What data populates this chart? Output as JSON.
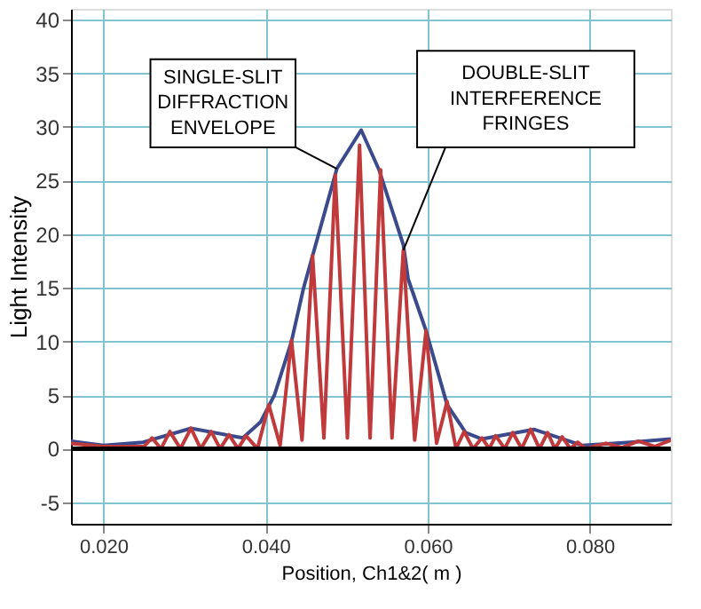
{
  "chart_data": {
    "type": "line",
    "xlabel": "Position, Ch1&2( m )",
    "ylabel": "Light Intensity",
    "xlim": [
      0.016,
      0.09
    ],
    "ylim": [
      -7,
      41
    ],
    "xticks": [
      {
        "value": 0.02,
        "label": "0.020"
      },
      {
        "value": 0.04,
        "label": "0.040"
      },
      {
        "value": 0.06,
        "label": "0.060"
      },
      {
        "value": 0.08,
        "label": "0.080"
      }
    ],
    "yticks": [
      -5,
      0,
      5,
      10,
      15,
      20,
      25,
      30,
      35,
      40
    ],
    "grid": true,
    "marker": "none",
    "line_style": "solid",
    "ref_lines": [
      {
        "axis": "y",
        "value": 0,
        "color": "#000000"
      }
    ],
    "series": [
      {
        "color": "#3b4a8c",
        "x": [
          0.016,
          0.02,
          0.0249,
          0.0308,
          0.0372,
          0.0394,
          0.0411,
          0.0432,
          0.0447,
          0.0488,
          0.0518,
          0.054,
          0.057,
          0.0576,
          0.0598,
          0.0624,
          0.0647,
          0.0667,
          0.0731,
          0.0791,
          0.085,
          0.09
        ],
        "values": [
          0.7,
          0.3,
          0.6,
          1.9,
          1.0,
          2.5,
          5,
          10,
          15,
          26.1,
          29.7,
          26,
          19,
          15.8,
          11,
          4.1,
          1.5,
          0.9,
          1.8,
          0.3,
          0.6,
          0.9
        ]
      },
      {
        "color": "#c0393b",
        "x": [
          0.016,
          0.02,
          0.025,
          0.026,
          0.0271,
          0.0282,
          0.0295,
          0.0308,
          0.032,
          0.0333,
          0.0344,
          0.0355,
          0.0366,
          0.0376,
          0.039,
          0.0404,
          0.0418,
          0.0432,
          0.0445,
          0.0458,
          0.0472,
          0.0486,
          0.0501,
          0.0516,
          0.0529,
          0.0542,
          0.0556,
          0.057,
          0.0584,
          0.0598,
          0.0611,
          0.0624,
          0.0635,
          0.0645,
          0.0656,
          0.0667,
          0.0676,
          0.0684,
          0.0695,
          0.0705,
          0.0716,
          0.0727,
          0.0738,
          0.0748,
          0.0757,
          0.0766,
          0.0776,
          0.0785,
          0.0795,
          0.082,
          0.084,
          0.086,
          0.088,
          0.09
        ],
        "values": [
          0.5,
          0.2,
          0.2,
          1.0,
          0,
          1.6,
          0,
          1.9,
          0,
          1.6,
          0,
          1.3,
          0,
          1.2,
          0,
          4.1,
          0.3,
          10.1,
          0.8,
          18,
          1,
          25.5,
          1,
          28.3,
          1,
          26,
          1,
          18.5,
          0.8,
          11,
          0.5,
          4.4,
          0,
          1.6,
          0,
          1.0,
          0,
          1.2,
          0,
          1.5,
          0,
          1.8,
          0,
          1.5,
          0,
          1.1,
          0,
          0.6,
          0,
          0.5,
          0.1,
          0.7,
          0.2,
          0.8
        ]
      }
    ],
    "annotations": [
      {
        "text": "SINGLE-SLIT\nDIFFRACTION\nENVELOPE",
        "x": 0.0488,
        "y": 26.1
      },
      {
        "text": "DOUBLE-SLIT\nINTERFERENCE\nFRINGES",
        "x": 0.057,
        "y": 18.5
      }
    ]
  }
}
